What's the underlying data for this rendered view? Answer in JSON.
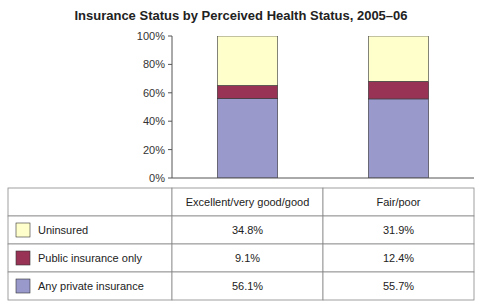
{
  "chart_data": {
    "type": "bar",
    "stacked": true,
    "grid": false,
    "title": "Insurance Status by Perceived Health Status, 2005–06",
    "categories": [
      "Excellent/very good/good",
      "Fair/poor"
    ],
    "series": [
      {
        "name": "Any private insurance",
        "color": "#9999cc",
        "values": [
          56.1,
          55.7
        ],
        "value_labels": [
          "56.1%",
          "55.7%"
        ]
      },
      {
        "name": "Public insurance only",
        "color": "#993355",
        "values": [
          9.1,
          12.4
        ],
        "value_labels": [
          "9.1%",
          "12.4%"
        ]
      },
      {
        "name": "Uninsured",
        "color": "#ffffcc",
        "values": [
          34.8,
          31.9
        ],
        "value_labels": [
          "34.8%",
          "31.9%"
        ]
      }
    ],
    "ylim": [
      0,
      100
    ],
    "yticks": [
      {
        "value": 0,
        "label": "0%"
      },
      {
        "value": 20,
        "label": "20%"
      },
      {
        "value": 40,
        "label": "40%"
      },
      {
        "value": 60,
        "label": "60%"
      },
      {
        "value": 80,
        "label": "80%"
      },
      {
        "value": 100,
        "label": "100%"
      }
    ]
  }
}
